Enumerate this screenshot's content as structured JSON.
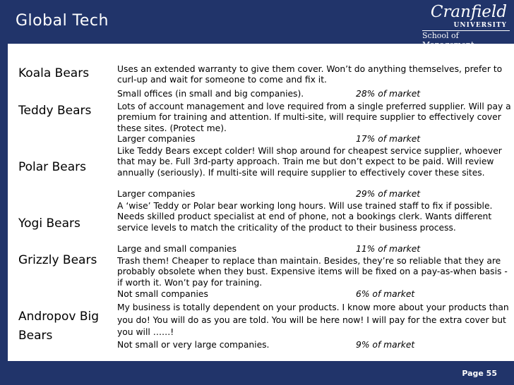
{
  "slide": {
    "title": "Global Tech",
    "logo": {
      "brand": "Cranfield",
      "university": "UNIVERSITY",
      "school": "School of Management"
    },
    "page_label": "Page 55"
  },
  "segments": [
    {
      "name": "Koala Bears",
      "description": "Uses an extended warranty to give them cover.  Won’t do anything themselves, prefer to curl-up and wait for someone to come and fix it.",
      "companies": "Small offices (in small and big companies).",
      "share": "28% of market"
    },
    {
      "name": "Teddy Bears",
      "description": "Lots of account management and love required from a single preferred supplier.  Will pay a premium for training and attention.  If multi-site, will require supplier to effectively cover these sites.  (Protect me).",
      "companies": "Larger companies",
      "share": "17% of market"
    },
    {
      "name": "Polar Bears",
      "description": "Like Teddy Bears except colder!  Will shop around for cheapest service supplier, whoever that may be.  Full 3rd-party approach.  Train me but don’t expect to be paid.  Will review annually (seriously).  If multi-site will require supplier to effectively cover these sites.",
      "companies": "Larger companies",
      "share": "29% of market"
    },
    {
      "name": "Yogi Bears",
      "description": "A ‘wise’ Teddy or Polar bear working long hours.  Will use trained staff to fix if possible.  Needs skilled product specialist at end of phone, not a bookings clerk.  Wants different service levels to match the criticality of the product to their business process.",
      "companies": "Large and small companies",
      "share": "11% of market"
    },
    {
      "name": "Grizzly Bears",
      "description": "Trash them!  Cheaper to replace than maintain.  Besides, they’re so reliable that they are probably obsolete when they bust.  Expensive items will be fixed on a pay-as-when basis - if worth it.  Won’t pay for training.",
      "companies": "Not small companies",
      "share": "6% of market"
    },
    {
      "name": "Andropov Big Bears",
      "description": "My business is totally dependent on your products.  I know more about your products than you do!  You will do as you are told.  You will be here now!  I will pay for the extra cover but you will ……!",
      "companies": "Not small or very large companies.",
      "share": "9% of market"
    }
  ]
}
